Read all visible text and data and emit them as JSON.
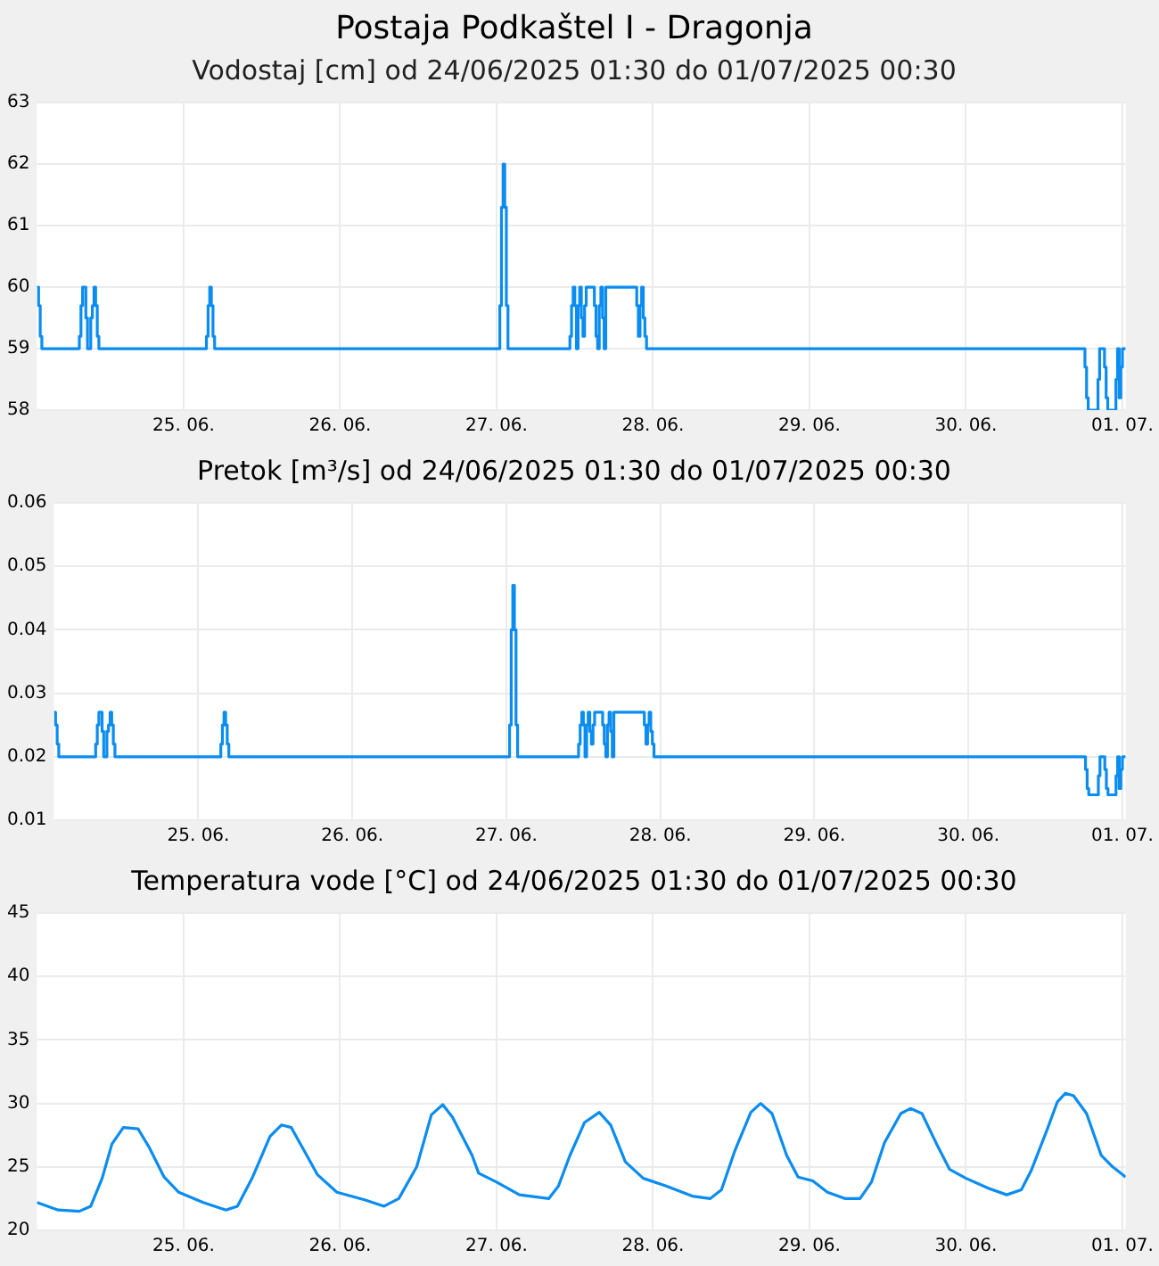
{
  "chart_data": [
    {
      "type": "step",
      "title": "Postaja Podkaštel I - Dragonja",
      "subtitle": "Vodostaj [cm] od 24/06/2025 01:30 do 01/07/2025 00:30",
      "x": [
        "2025-06-24T01:30",
        "2025-06-24T01:45",
        "2025-06-24T02:00",
        "2025-06-24T02:15",
        "2025-06-24T08:00",
        "2025-06-24T08:15",
        "2025-06-24T08:30",
        "2025-06-24T09:00",
        "2025-06-24T09:15",
        "2025-06-24T09:45",
        "2025-06-24T10:00",
        "2025-06-24T10:15",
        "2025-06-24T10:30",
        "2025-06-24T10:45",
        "2025-06-24T11:00",
        "2025-06-25T03:30",
        "2025-06-25T03:45",
        "2025-06-25T04:00",
        "2025-06-25T04:15",
        "2025-06-25T04:30",
        "2025-06-25T04:45",
        "2025-06-27T00:30",
        "2025-06-27T00:45",
        "2025-06-27T01:00",
        "2025-06-27T01:15",
        "2025-06-27T01:30",
        "2025-06-27T01:45",
        "2025-06-27T11:15",
        "2025-06-27T11:30",
        "2025-06-27T11:45",
        "2025-06-27T12:00",
        "2025-06-27T12:15",
        "2025-06-27T12:30",
        "2025-06-27T12:45",
        "2025-06-27T13:00",
        "2025-06-27T13:15",
        "2025-06-27T13:30",
        "2025-06-27T13:45",
        "2025-06-27T15:00",
        "2025-06-27T15:15",
        "2025-06-27T15:30",
        "2025-06-27T15:45",
        "2025-06-27T16:00",
        "2025-06-27T16:15",
        "2025-06-27T16:30",
        "2025-06-27T16:45",
        "2025-06-27T21:30",
        "2025-06-27T21:45",
        "2025-06-27T22:00",
        "2025-06-27T22:15",
        "2025-06-27T22:30",
        "2025-06-27T22:45",
        "2025-06-27T23:00",
        "2025-06-30T18:15",
        "2025-06-30T18:30",
        "2025-06-30T18:45",
        "2025-06-30T20:15",
        "2025-06-30T20:30",
        "2025-06-30T21:15",
        "2025-06-30T21:30",
        "2025-06-30T21:45",
        "2025-06-30T23:00",
        "2025-06-30T23:15",
        "2025-06-30T23:30",
        "2025-06-30T23:45",
        "2025-07-01T00:00",
        "2025-07-01T00:30"
      ],
      "series": [
        {
          "color": "#0a8cf0",
          "values": [
            60,
            59.7,
            59.2,
            59,
            59.2,
            59.7,
            60,
            59.5,
            59,
            59.5,
            59.7,
            60,
            59.7,
            59.2,
            59,
            59.2,
            59.7,
            60,
            59.7,
            59.2,
            59,
            59.7,
            61.3,
            62,
            61.3,
            59.7,
            59,
            59.2,
            59.7,
            60,
            59.7,
            59,
            59.7,
            60,
            59.5,
            59.2,
            59.7,
            60,
            59.7,
            59.2,
            59,
            59.7,
            60,
            59.5,
            59,
            60,
            59.7,
            59.2,
            59.7,
            60,
            59.5,
            59.2,
            59,
            58.7,
            58.2,
            58,
            58.5,
            59,
            58.7,
            58.2,
            58,
            58.5,
            59,
            58.2,
            58.7,
            59,
            59
          ]
        }
      ],
      "xlim": [
        "2025-06-24T01:30",
        "2025-07-01T00:30"
      ],
      "xticks": [
        {
          "value": "2025-06-25",
          "label": "25. 06."
        },
        {
          "value": "2025-06-26",
          "label": "26. 06."
        },
        {
          "value": "2025-06-27",
          "label": "27. 06."
        },
        {
          "value": "2025-06-28",
          "label": "28. 06."
        },
        {
          "value": "2025-06-29",
          "label": "29. 06."
        },
        {
          "value": "2025-06-30",
          "label": "30. 06."
        },
        {
          "value": "2025-07-01",
          "label": "01. 07."
        }
      ],
      "ylim": [
        58,
        63
      ],
      "yticks": [
        58,
        59,
        60,
        61,
        62,
        63
      ],
      "grid": true,
      "legend": false,
      "marker": "none",
      "line_style": "solid"
    },
    {
      "type": "step",
      "title": "Pretok [m³/s] od 24/06/2025 01:30 do 01/07/2025 00:30",
      "x": [
        "2025-06-24T01:30",
        "2025-06-24T01:45",
        "2025-06-24T02:00",
        "2025-06-24T02:15",
        "2025-06-24T08:00",
        "2025-06-24T08:15",
        "2025-06-24T08:30",
        "2025-06-24T09:00",
        "2025-06-24T09:15",
        "2025-06-24T09:45",
        "2025-06-24T10:00",
        "2025-06-24T10:15",
        "2025-06-24T10:30",
        "2025-06-24T10:45",
        "2025-06-24T11:00",
        "2025-06-25T03:30",
        "2025-06-25T03:45",
        "2025-06-25T04:00",
        "2025-06-25T04:15",
        "2025-06-25T04:30",
        "2025-06-25T04:45",
        "2025-06-27T00:30",
        "2025-06-27T00:45",
        "2025-06-27T01:00",
        "2025-06-27T01:15",
        "2025-06-27T01:30",
        "2025-06-27T01:45",
        "2025-06-27T11:15",
        "2025-06-27T11:30",
        "2025-06-27T11:45",
        "2025-06-27T12:00",
        "2025-06-27T12:15",
        "2025-06-27T12:30",
        "2025-06-27T12:45",
        "2025-06-27T13:00",
        "2025-06-27T13:15",
        "2025-06-27T13:30",
        "2025-06-27T13:45",
        "2025-06-27T15:00",
        "2025-06-27T15:15",
        "2025-06-27T15:30",
        "2025-06-27T15:45",
        "2025-06-27T16:00",
        "2025-06-27T16:15",
        "2025-06-27T16:30",
        "2025-06-27T16:45",
        "2025-06-27T21:30",
        "2025-06-27T21:45",
        "2025-06-27T22:00",
        "2025-06-27T22:15",
        "2025-06-27T22:30",
        "2025-06-27T22:45",
        "2025-06-27T23:00",
        "2025-06-30T18:15",
        "2025-06-30T18:30",
        "2025-06-30T18:45",
        "2025-06-30T20:15",
        "2025-06-30T20:30",
        "2025-06-30T21:15",
        "2025-06-30T21:30",
        "2025-06-30T21:45",
        "2025-06-30T23:00",
        "2025-06-30T23:15",
        "2025-06-30T23:30",
        "2025-06-30T23:45",
        "2025-07-01T00:00",
        "2025-07-01T00:30"
      ],
      "series": [
        {
          "color": "#0a8cf0",
          "values": [
            0.027,
            0.025,
            0.022,
            0.02,
            0.022,
            0.025,
            0.027,
            0.024,
            0.02,
            0.024,
            0.025,
            0.027,
            0.025,
            0.022,
            0.02,
            0.022,
            0.025,
            0.027,
            0.025,
            0.022,
            0.02,
            0.025,
            0.04,
            0.047,
            0.04,
            0.025,
            0.02,
            0.022,
            0.025,
            0.027,
            0.025,
            0.02,
            0.025,
            0.027,
            0.024,
            0.022,
            0.025,
            0.027,
            0.025,
            0.022,
            0.02,
            0.025,
            0.027,
            0.024,
            0.02,
            0.027,
            0.025,
            0.022,
            0.025,
            0.027,
            0.024,
            0.022,
            0.02,
            0.018,
            0.015,
            0.014,
            0.017,
            0.02,
            0.018,
            0.015,
            0.014,
            0.017,
            0.02,
            0.015,
            0.018,
            0.02,
            0.02
          ]
        }
      ],
      "xlim": [
        "2025-06-24T01:30",
        "2025-07-01T00:30"
      ],
      "xticks": [
        {
          "value": "2025-06-25",
          "label": "25. 06."
        },
        {
          "value": "2025-06-26",
          "label": "26. 06."
        },
        {
          "value": "2025-06-27",
          "label": "27. 06."
        },
        {
          "value": "2025-06-28",
          "label": "28. 06."
        },
        {
          "value": "2025-06-29",
          "label": "29. 06."
        },
        {
          "value": "2025-06-30",
          "label": "30. 06."
        },
        {
          "value": "2025-07-01",
          "label": "01. 07."
        }
      ],
      "ylim": [
        0.01,
        0.06
      ],
      "yticks": [
        0.01,
        0.02,
        0.03,
        0.04,
        0.05,
        0.06
      ],
      "grid": true,
      "legend": false,
      "marker": "none",
      "line_style": "solid"
    },
    {
      "type": "line",
      "title": "Temperatura vode [°C] od 24/06/2025 01:30 do 01/07/2025 00:30",
      "x": [
        "2025-06-24T01:30",
        "2025-06-24T04:45",
        "2025-06-24T08:00",
        "2025-06-24T09:45",
        "2025-06-24T11:30",
        "2025-06-24T13:00",
        "2025-06-24T14:45",
        "2025-06-24T17:00",
        "2025-06-24T18:45",
        "2025-06-24T21:00",
        "2025-06-24T23:15",
        "2025-06-25T03:00",
        "2025-06-25T06:30",
        "2025-06-25T08:15",
        "2025-06-25T10:30",
        "2025-06-25T13:15",
        "2025-06-25T15:00",
        "2025-06-25T16:30",
        "2025-06-25T18:15",
        "2025-06-25T20:30",
        "2025-06-25T23:30",
        "2025-06-26T03:45",
        "2025-06-26T06:45",
        "2025-06-26T09:00",
        "2025-06-26T11:45",
        "2025-06-26T14:00",
        "2025-06-26T15:45",
        "2025-06-26T17:15",
        "2025-06-26T20:15",
        "2025-06-26T21:15",
        "2025-06-27T00:00",
        "2025-06-27T03:30",
        "2025-06-27T08:00",
        "2025-06-27T09:30",
        "2025-06-27T11:15",
        "2025-06-27T13:30",
        "2025-06-27T15:45",
        "2025-06-27T17:30",
        "2025-06-27T19:45",
        "2025-06-27T22:30",
        "2025-06-28T02:00",
        "2025-06-28T06:00",
        "2025-06-28T08:45",
        "2025-06-28T10:30",
        "2025-06-28T12:30",
        "2025-06-28T15:00",
        "2025-06-28T16:30",
        "2025-06-28T18:15",
        "2025-06-28T20:30",
        "2025-06-28T22:15",
        "2025-06-29T00:30",
        "2025-06-29T02:45",
        "2025-06-29T05:30",
        "2025-06-29T07:45",
        "2025-06-29T09:30",
        "2025-06-29T11:30",
        "2025-06-29T14:00",
        "2025-06-29T15:30",
        "2025-06-29T17:15",
        "2025-06-29T19:30",
        "2025-06-29T21:30",
        "2025-06-30T00:00",
        "2025-06-30T03:30",
        "2025-06-30T06:15",
        "2025-06-30T08:30",
        "2025-06-30T10:00",
        "2025-06-30T12:30",
        "2025-06-30T14:00",
        "2025-06-30T15:15",
        "2025-06-30T16:30",
        "2025-06-30T18:30",
        "2025-06-30T20:45",
        "2025-06-30T22:30",
        "2025-07-01T00:30"
      ],
      "series": [
        {
          "color": "#0a8cf0",
          "values": [
            22.2,
            21.6,
            21.5,
            21.9,
            24.1,
            26.8,
            28.1,
            28.0,
            26.5,
            24.2,
            23.0,
            22.2,
            21.6,
            21.9,
            24.1,
            27.4,
            28.3,
            28.1,
            26.5,
            24.4,
            23.0,
            22.4,
            21.9,
            22.5,
            25.0,
            29.1,
            29.9,
            28.9,
            25.9,
            24.5,
            23.8,
            22.8,
            22.5,
            23.5,
            25.9,
            28.5,
            29.3,
            28.3,
            25.4,
            24.1,
            23.5,
            22.7,
            22.5,
            23.2,
            26.2,
            29.3,
            30.0,
            29.2,
            25.9,
            24.2,
            23.9,
            23.0,
            22.5,
            22.5,
            23.8,
            26.9,
            29.2,
            29.6,
            29.2,
            26.8,
            24.8,
            24.1,
            23.3,
            22.8,
            23.2,
            24.7,
            28.0,
            30.1,
            30.8,
            30.6,
            29.2,
            25.9,
            25.0,
            24.2
          ]
        }
      ],
      "xlim": [
        "2025-06-24T01:30",
        "2025-07-01T00:30"
      ],
      "xticks": [
        {
          "value": "2025-06-25",
          "label": "25. 06."
        },
        {
          "value": "2025-06-26",
          "label": "26. 06."
        },
        {
          "value": "2025-06-27",
          "label": "27. 06."
        },
        {
          "value": "2025-06-28",
          "label": "28. 06."
        },
        {
          "value": "2025-06-29",
          "label": "29. 06."
        },
        {
          "value": "2025-06-30",
          "label": "30. 06."
        },
        {
          "value": "2025-07-01",
          "label": "01. 07."
        }
      ],
      "ylim": [
        20,
        45
      ],
      "yticks": [
        20,
        25,
        30,
        35,
        40,
        45
      ],
      "grid": true,
      "legend": false,
      "marker": "none",
      "line_style": "solid"
    }
  ]
}
